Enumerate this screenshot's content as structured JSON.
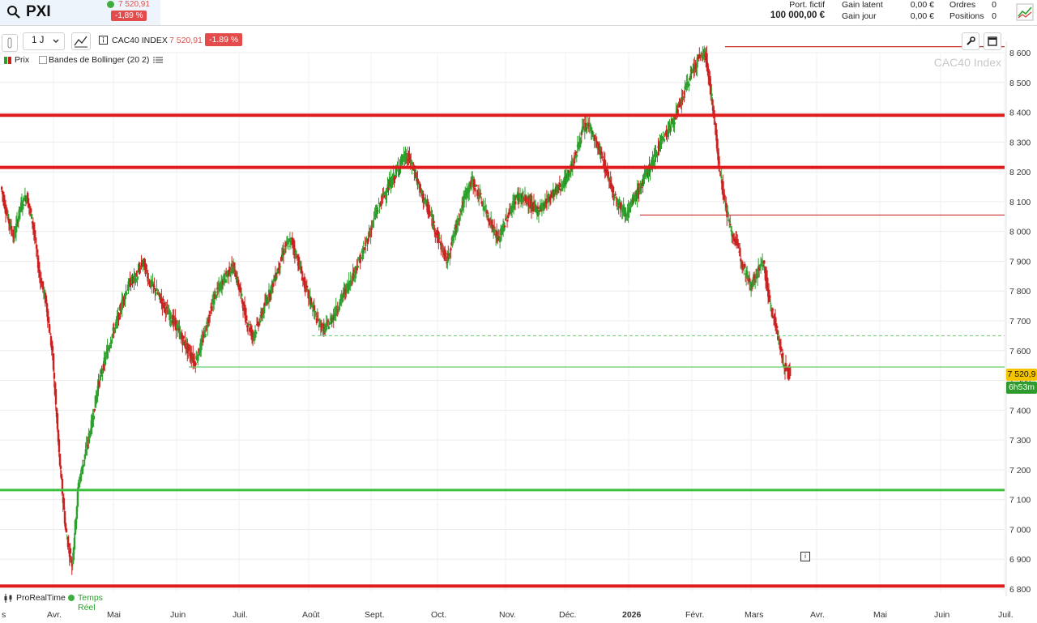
{
  "header": {
    "ticker": "PXI",
    "quote_price": "7 520,91",
    "quote_change": "-1,89 %",
    "portfolio_label": "Port. fictif",
    "portfolio_value": "100 000,00 €",
    "gain_latent_label": "Gain latent",
    "gain_latent_value": "0,00 €",
    "gain_jour_label": "Gain jour",
    "gain_jour_value": "0,00 €",
    "ordres_label": "Ordres",
    "ordres_value": "0",
    "positions_label": "Positions",
    "positions_value": "0"
  },
  "toolbar": {
    "timeframe": "1 J",
    "instrument": "CAC40 INDEX",
    "instrument_price": "7 520,91",
    "instrument_change": "-1.89 %"
  },
  "legend": {
    "price": "Prix",
    "bollinger": "Bandes de Bollinger (20 2)"
  },
  "watermark": "CAC40 Index",
  "footer": {
    "provider": "ProRealTime",
    "realtime": "Temps Réel"
  },
  "price_tags": {
    "last": "7 520,9",
    "countdown": "6h53m"
  },
  "colors": {
    "up": "#2ca02c",
    "down": "#cc2020",
    "resistance": "#e01b1b",
    "support": "#3cc03c"
  },
  "chart_data": {
    "type": "candlestick",
    "ylim": [
      6800,
      8650
    ],
    "y_ticks": [
      "8 600",
      "8 500",
      "8 400",
      "8 300",
      "8 200",
      "8 100",
      "8 000",
      "7 900",
      "7 800",
      "7 700",
      "7 600",
      "7 500",
      "7 400",
      "7 300",
      "7 200",
      "7 100",
      "7 000",
      "6 900",
      "6 800"
    ],
    "y_tick_values": [
      8600,
      8500,
      8400,
      8300,
      8200,
      8100,
      8000,
      7900,
      7800,
      7700,
      7600,
      7500,
      7400,
      7300,
      7200,
      7100,
      7000,
      6900,
      6800
    ],
    "x_labels": [
      "s",
      "Avr.",
      "Mai",
      "Juin",
      "Juil.",
      "Août",
      "Sept.",
      "Oct.",
      "Nov.",
      "Déc.",
      "2026",
      "Févr.",
      "Mars",
      "Avr.",
      "Mai",
      "Juin",
      "Juil."
    ],
    "last_price": 7520.91,
    "levels": [
      {
        "value": 8390,
        "style": "thick-red"
      },
      {
        "value": 8215,
        "style": "thick-red"
      },
      {
        "value": 7132,
        "style": "thick-green"
      },
      {
        "value": 6810,
        "style": "thick-red"
      },
      {
        "value": 8620,
        "style": "thin-red",
        "from": "Févr.",
        "to": "end"
      },
      {
        "value": 8055,
        "style": "thin-red",
        "from": "2026",
        "to": "end"
      },
      {
        "value": 7650,
        "style": "dashed-green",
        "from": "Août",
        "to": "end"
      },
      {
        "value": 7545,
        "style": "thin-green",
        "from": "Juin",
        "to": "end"
      }
    ],
    "close_path": [
      8150,
      8050,
      7980,
      8080,
      8120,
      8020,
      7850,
      7760,
      7580,
      7250,
      7000,
      6880,
      7150,
      7250,
      7350,
      7480,
      7560,
      7640,
      7700,
      7780,
      7830,
      7850,
      7900,
      7830,
      7800,
      7760,
      7720,
      7690,
      7640,
      7600,
      7560,
      7620,
      7700,
      7780,
      7820,
      7860,
      7880,
      7800,
      7700,
      7650,
      7700,
      7760,
      7820,
      7880,
      7950,
      7970,
      7900,
      7820,
      7760,
      7700,
      7670,
      7700,
      7740,
      7790,
      7830,
      7880,
      7930,
      7990,
      8060,
      8110,
      8150,
      8190,
      8240,
      8250,
      8200,
      8130,
      8080,
      8020,
      7960,
      7900,
      7980,
      8060,
      8130,
      8170,
      8120,
      8070,
      8020,
      7970,
      8030,
      8080,
      8120,
      8110,
      8090,
      8070,
      8090,
      8120,
      8140,
      8160,
      8200,
      8260,
      8340,
      8360,
      8300,
      8250,
      8180,
      8120,
      8080,
      8060,
      8110,
      8150,
      8200,
      8240,
      8300,
      8330,
      8370,
      8420,
      8480,
      8540,
      8580,
      8600,
      8450,
      8250,
      8100,
      8000,
      7950,
      7880,
      7820,
      7860,
      7900,
      7760,
      7680,
      7560,
      7521
    ]
  }
}
